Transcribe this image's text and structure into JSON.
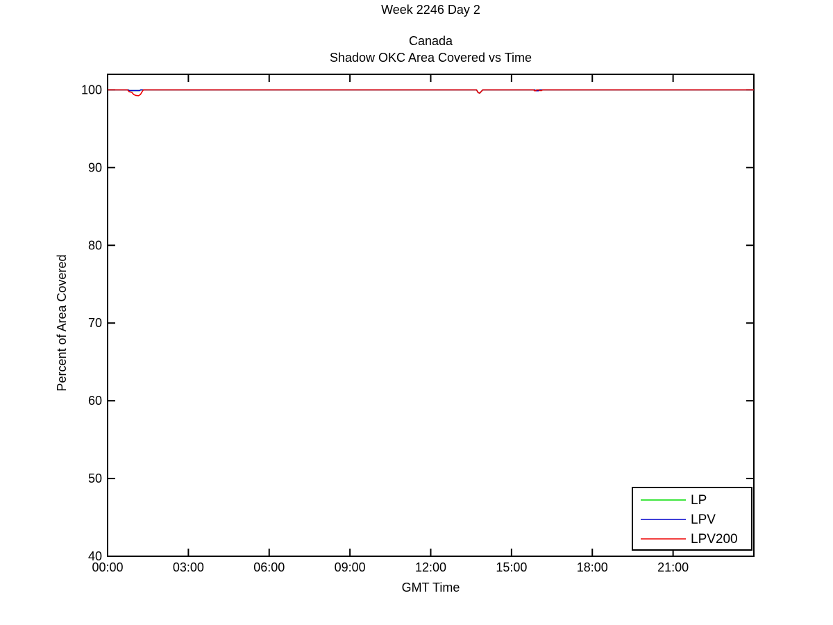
{
  "figure": {
    "suptitle": "Week 2246 Day 2",
    "title_line1": "Canada",
    "title_line2": "Shadow OKC Area Covered vs Time"
  },
  "chart_data": {
    "type": "line",
    "suptitle": "Week 2246 Day 2",
    "title": [
      "Canada",
      "Shadow OKC Area Covered vs Time"
    ],
    "xlabel": "GMT Time",
    "ylabel": "Percent of Area Covered",
    "x_unit": "hours GMT",
    "xlim": [
      0,
      24
    ],
    "ylim": [
      40,
      102
    ],
    "grid": false,
    "x_ticks": [
      {
        "hour": 0,
        "label": "00:00"
      },
      {
        "hour": 3,
        "label": "03:00"
      },
      {
        "hour": 6,
        "label": "06:00"
      },
      {
        "hour": 9,
        "label": "09:00"
      },
      {
        "hour": 12,
        "label": "12:00"
      },
      {
        "hour": 15,
        "label": "15:00"
      },
      {
        "hour": 18,
        "label": "18:00"
      },
      {
        "hour": 21,
        "label": "21:00"
      }
    ],
    "y_ticks": [
      40,
      50,
      60,
      70,
      80,
      90,
      100
    ],
    "legend": {
      "position": "lower-right",
      "entries": [
        {
          "name": "LP",
          "color": "#00DD00"
        },
        {
          "name": "LPV",
          "color": "#0000CC"
        },
        {
          "name": "LPV200",
          "color": "#EE0000"
        }
      ]
    },
    "series": [
      {
        "name": "LP",
        "color": "#00DD00",
        "points": [
          [
            0,
            100
          ],
          [
            0.77,
            100
          ],
          [
            0.81,
            99.91
          ],
          [
            1.19,
            99.91
          ],
          [
            1.23,
            100
          ],
          [
            13.7,
            100
          ],
          [
            13.76,
            99.65
          ],
          [
            13.82,
            99.58
          ],
          [
            13.88,
            99.8
          ],
          [
            13.93,
            100
          ],
          [
            15.87,
            100
          ],
          [
            15.9,
            99.88
          ],
          [
            16.0,
            99.88
          ],
          [
            16.03,
            100
          ],
          [
            24,
            100
          ]
        ]
      },
      {
        "name": "LPV",
        "color": "#0000CC",
        "points": [
          [
            0,
            100
          ],
          [
            0.77,
            100
          ],
          [
            0.81,
            99.91
          ],
          [
            1.19,
            99.91
          ],
          [
            1.23,
            100
          ],
          [
            13.7,
            100
          ],
          [
            13.76,
            99.65
          ],
          [
            13.82,
            99.58
          ],
          [
            13.88,
            99.8
          ],
          [
            13.93,
            100
          ],
          [
            15.87,
            100
          ],
          [
            15.9,
            99.88
          ],
          [
            16.0,
            99.88
          ],
          [
            16.03,
            100
          ],
          [
            24,
            100
          ]
        ]
      },
      {
        "name": "LPV200",
        "color": "#EE0000",
        "points": [
          [
            0,
            100
          ],
          [
            0.74,
            100
          ],
          [
            0.8,
            99.75
          ],
          [
            0.9,
            99.68
          ],
          [
            0.97,
            99.4
          ],
          [
            1.05,
            99.28
          ],
          [
            1.15,
            99.25
          ],
          [
            1.22,
            99.4
          ],
          [
            1.28,
            99.75
          ],
          [
            1.33,
            100
          ],
          [
            13.7,
            100
          ],
          [
            13.76,
            99.65
          ],
          [
            13.82,
            99.58
          ],
          [
            13.88,
            99.8
          ],
          [
            13.93,
            100
          ],
          [
            15.82,
            100
          ],
          [
            15.85,
            99.88
          ],
          [
            15.9,
            99.88
          ],
          [
            15.93,
            100
          ],
          [
            16.02,
            100
          ],
          [
            16.05,
            99.9
          ],
          [
            16.12,
            99.9
          ],
          [
            16.15,
            100
          ],
          [
            24,
            100
          ]
        ]
      }
    ],
    "annotations": "All three series sit at 100% for the whole day; LPV200 shows small dips (to ~99.25%) near 01:00, ~13:50 and ~16:00."
  }
}
